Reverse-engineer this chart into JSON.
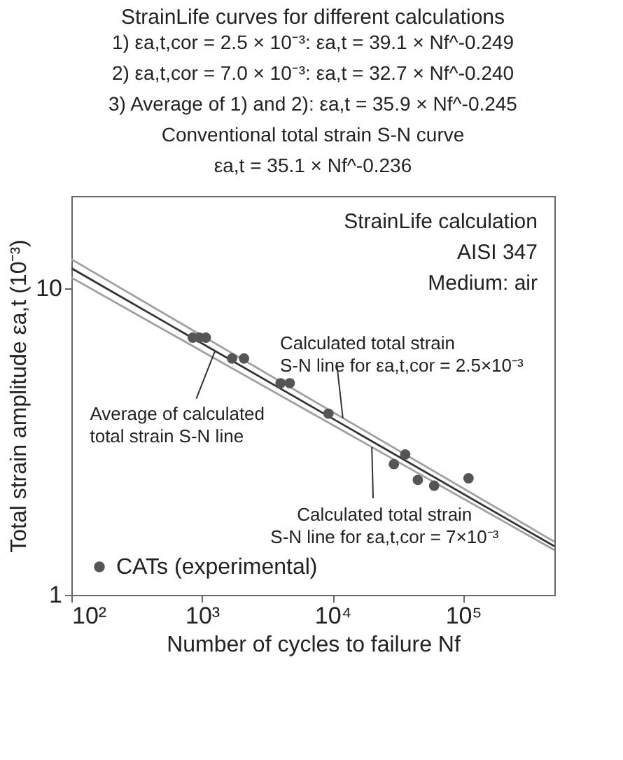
{
  "chart_data": {
    "type": "scatter",
    "title": "StrainLife curves for different calculations",
    "subtitle": "1) εa,t,cor = 2.5 × 10⁻³:     εa,t = 39.1 × Nf^-0.249",
    "annotations": [
      "2) εa,t,cor = 7.0 × 10⁻³:     εa,t = 32.7 × Nf^-0.240",
      "3) Average of 1) and 2): εa,t = 35.9 × Nf^-0.245",
      "Conventional total strain S-N curve",
      "εa,t = 35.1 × Nf^-0.236",
      "StrainLife calculation",
      "AISI 347",
      "Medium: air",
      {
        "text": "Average of calculated\ntotal strain S-N line",
        "x": 1260,
        "y": 6.25
      },
      {
        "text": "Calculated total strain\nS-N line for εa,t,cor = 2.5×10⁻³",
        "x": 12000,
        "y": 3.77
      },
      {
        "text": "Calculated total strain\nS-N line for εa,t,cor = 7×10⁻³",
        "x": 20000,
        "y": 3.03
      }
    ],
    "xlabel": "Number of cycles to failure Nf",
    "ylabel": "Total strain amplitude εa,t (10⁻³)",
    "log": "xy",
    "xlim": [
      100,
      500000
    ],
    "ylim": [
      1,
      20
    ],
    "xticks": [
      {
        "value": 100,
        "label": "10²"
      },
      {
        "value": 1000,
        "label": "10³"
      },
      {
        "value": 10000,
        "label": "10⁴"
      },
      {
        "value": 100000,
        "label": "10⁵"
      }
    ],
    "yticks": [
      1,
      10
    ],
    "legend": "bottom left",
    "grid": false,
    "series": [
      {
        "type": "line",
        "color": "#a0a0a0",
        "x": [
          100,
          500000
        ],
        "values": [
          12.43,
          1.49
        ]
      },
      {
        "type": "line",
        "color": "#a0a0a0",
        "x": [
          100,
          500000
        ],
        "values": [
          10.83,
          1.4
        ]
      },
      {
        "type": "line",
        "color": "#333333",
        "x": [
          100,
          500000
        ],
        "values": [
          11.62,
          1.44
        ]
      },
      {
        "type": "scatter",
        "name": "CATs (experimental)",
        "color": "#555555",
        "marker": "circle",
        "x": [
          850,
          955,
          1070,
          1700,
          2100,
          4000,
          4700,
          9300,
          29500,
          36000,
          45000,
          60000,
          110000
        ],
        "values": [
          6.9,
          6.9,
          6.9,
          5.9,
          5.9,
          4.9,
          4.9,
          3.9,
          2.67,
          2.87,
          2.37,
          2.27,
          2.4
        ]
      }
    ]
  }
}
